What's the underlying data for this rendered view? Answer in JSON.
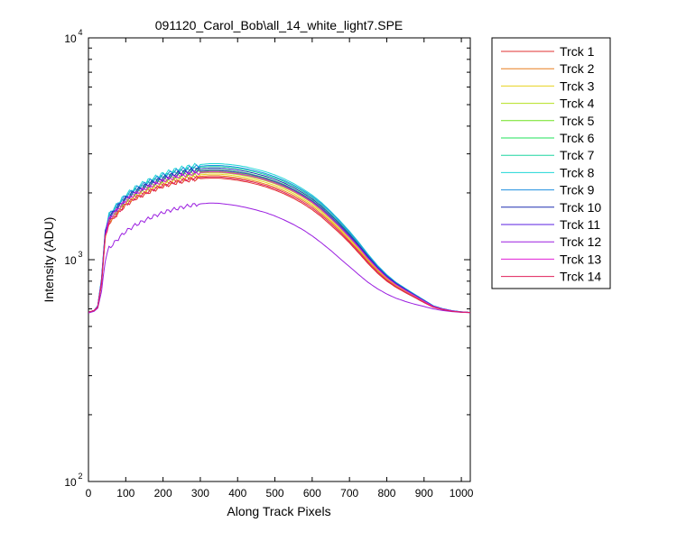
{
  "chart_data": {
    "type": "line",
    "title": "091120_Carol_Bob\\all_14_white_light7.SPE",
    "xlabel": "Along Track Pixels",
    "ylabel": "Intensity (ADU)",
    "xlim": [
      0,
      1024
    ],
    "ylim": [
      100,
      10000
    ],
    "yscale": "log",
    "grid": false,
    "legend_position": "outside-top-right",
    "x_ticks": [
      0,
      100,
      200,
      300,
      400,
      500,
      600,
      700,
      800,
      900,
      1000
    ],
    "y_ticks": [
      {
        "value": 100,
        "base": "10",
        "exp": "2"
      },
      {
        "value": 1000,
        "base": "10",
        "exp": "3"
      },
      {
        "value": 10000,
        "base": "10",
        "exp": "4"
      }
    ],
    "x": [
      0,
      15,
      25,
      35,
      45,
      55,
      65,
      75,
      85,
      100,
      125,
      150,
      175,
      200,
      225,
      250,
      275,
      300,
      325,
      350,
      375,
      400,
      425,
      450,
      475,
      500,
      525,
      550,
      575,
      600,
      625,
      650,
      675,
      700,
      725,
      750,
      775,
      800,
      825,
      850,
      875,
      900,
      925,
      950,
      975,
      1000,
      1024
    ],
    "series": [
      {
        "name": "Trck 1",
        "color": "#e03030",
        "values": [
          580,
          590,
          610,
          780,
          1250,
          1460,
          1520,
          1590,
          1660,
          1760,
          1880,
          1970,
          2060,
          2140,
          2200,
          2250,
          2290,
          2320,
          2330,
          2330,
          2310,
          2280,
          2240,
          2190,
          2130,
          2060,
          1980,
          1890,
          1790,
          1680,
          1560,
          1430,
          1310,
          1190,
          1070,
          960,
          870,
          800,
          750,
          710,
          675,
          640,
          610,
          595,
          585,
          580,
          578
        ]
      },
      {
        "name": "Trck 2",
        "color": "#e87f1f",
        "values": [
          580,
          590,
          612,
          785,
          1270,
          1480,
          1545,
          1615,
          1685,
          1790,
          1915,
          2010,
          2100,
          2185,
          2250,
          2300,
          2345,
          2375,
          2390,
          2390,
          2370,
          2340,
          2300,
          2250,
          2190,
          2120,
          2040,
          1950,
          1850,
          1740,
          1610,
          1480,
          1350,
          1220,
          1100,
          985,
          890,
          815,
          760,
          718,
          680,
          645,
          612,
          596,
          586,
          580,
          578
        ]
      },
      {
        "name": "Trck 3",
        "color": "#e8d21f",
        "values": [
          580,
          590,
          613,
          790,
          1280,
          1495,
          1560,
          1635,
          1705,
          1810,
          1940,
          2040,
          2130,
          2215,
          2285,
          2340,
          2385,
          2415,
          2430,
          2430,
          2410,
          2380,
          2340,
          2290,
          2230,
          2160,
          2080,
          1985,
          1880,
          1770,
          1640,
          1500,
          1370,
          1240,
          1115,
          995,
          900,
          822,
          765,
          722,
          683,
          647,
          613,
          597,
          586,
          580,
          578
        ]
      },
      {
        "name": "Trck 4",
        "color": "#b5e01f",
        "values": [
          580,
          590,
          614,
          795,
          1290,
          1510,
          1580,
          1655,
          1725,
          1835,
          1965,
          2070,
          2160,
          2250,
          2320,
          2375,
          2420,
          2455,
          2470,
          2470,
          2450,
          2420,
          2380,
          2330,
          2270,
          2200,
          2115,
          2020,
          1915,
          1800,
          1665,
          1525,
          1390,
          1255,
          1128,
          1005,
          907,
          828,
          770,
          726,
          686,
          649,
          614,
          597,
          587,
          581,
          578
        ]
      },
      {
        "name": "Trck 5",
        "color": "#6de01f",
        "values": [
          580,
          590,
          615,
          800,
          1300,
          1525,
          1595,
          1670,
          1745,
          1855,
          1990,
          2095,
          2190,
          2280,
          2350,
          2410,
          2455,
          2490,
          2505,
          2505,
          2485,
          2455,
          2415,
          2365,
          2305,
          2230,
          2145,
          2050,
          1940,
          1825,
          1690,
          1545,
          1405,
          1270,
          1140,
          1015,
          913,
          833,
          773,
          729,
          688,
          650,
          615,
          598,
          587,
          581,
          578
        ]
      },
      {
        "name": "Trck 6",
        "color": "#1fe05a",
        "values": [
          580,
          590,
          616,
          805,
          1310,
          1540,
          1610,
          1690,
          1765,
          1875,
          2015,
          2125,
          2220,
          2310,
          2385,
          2445,
          2490,
          2525,
          2545,
          2545,
          2525,
          2495,
          2455,
          2400,
          2340,
          2265,
          2180,
          2080,
          1970,
          1850,
          1715,
          1565,
          1425,
          1285,
          1152,
          1025,
          920,
          838,
          777,
          732,
          690,
          652,
          616,
          599,
          588,
          581,
          578
        ]
      },
      {
        "name": "Trck 7",
        "color": "#1fd6a0",
        "values": [
          580,
          590,
          618,
          815,
          1330,
          1570,
          1645,
          1725,
          1805,
          1920,
          2065,
          2180,
          2280,
          2375,
          2455,
          2520,
          2570,
          2610,
          2630,
          2630,
          2610,
          2580,
          2535,
          2480,
          2415,
          2340,
          2250,
          2145,
          2030,
          1905,
          1765,
          1610,
          1460,
          1315,
          1175,
          1042,
          932,
          847,
          784,
          737,
          694,
          655,
          618,
          600,
          588,
          581,
          578
        ]
      },
      {
        "name": "Trck 8",
        "color": "#1fd6d6",
        "values": [
          580,
          590,
          620,
          825,
          1350,
          1600,
          1680,
          1760,
          1845,
          1965,
          2115,
          2235,
          2340,
          2440,
          2525,
          2590,
          2645,
          2685,
          2710,
          2710,
          2690,
          2660,
          2615,
          2555,
          2490,
          2410,
          2315,
          2205,
          2085,
          1955,
          1810,
          1650,
          1495,
          1345,
          1198,
          1058,
          944,
          856,
          790,
          742,
          698,
          658,
          620,
          601,
          589,
          582,
          578
        ]
      },
      {
        "name": "Trck 9",
        "color": "#1f8fe0",
        "values": [
          580,
          590,
          619,
          820,
          1340,
          1585,
          1660,
          1740,
          1825,
          1940,
          2085,
          2200,
          2305,
          2400,
          2485,
          2550,
          2600,
          2640,
          2660,
          2660,
          2640,
          2610,
          2565,
          2510,
          2445,
          2365,
          2275,
          2170,
          2055,
          1930,
          1790,
          1635,
          1480,
          1330,
          1188,
          1050,
          938,
          852,
          788,
          740,
          697,
          657,
          619,
          601,
          589,
          582,
          578
        ]
      },
      {
        "name": "Trck 10",
        "color": "#1f2fb0",
        "values": [
          580,
          590,
          617,
          810,
          1320,
          1555,
          1628,
          1707,
          1785,
          1898,
          2040,
          2152,
          2250,
          2343,
          2420,
          2483,
          2530,
          2568,
          2588,
          2588,
          2568,
          2538,
          2495,
          2440,
          2378,
          2303,
          2215,
          2113,
          2000,
          1878,
          1740,
          1588,
          1443,
          1300,
          1163,
          1034,
          926,
          843,
          781,
          735,
          692,
          654,
          617,
          600,
          588,
          581,
          578
        ]
      },
      {
        "name": "Trck 11",
        "color": "#5a1fe0",
        "values": [
          580,
          590,
          616,
          805,
          1305,
          1535,
          1605,
          1683,
          1757,
          1868,
          2005,
          2112,
          2207,
          2297,
          2372,
          2432,
          2477,
          2512,
          2530,
          2530,
          2510,
          2480,
          2440,
          2385,
          2325,
          2250,
          2165,
          2065,
          1955,
          1838,
          1705,
          1557,
          1417,
          1278,
          1146,
          1020,
          917,
          836,
          775,
          731,
          689,
          651,
          616,
          599,
          588,
          581,
          578
        ]
      },
      {
        "name": "Trck 12",
        "color": "#9b1fe0",
        "values": [
          575,
          585,
          605,
          720,
          1000,
          1130,
          1170,
          1220,
          1270,
          1340,
          1430,
          1500,
          1570,
          1630,
          1680,
          1720,
          1760,
          1785,
          1800,
          1795,
          1775,
          1750,
          1715,
          1675,
          1630,
          1575,
          1510,
          1440,
          1365,
          1280,
          1190,
          1100,
          1010,
          930,
          855,
          790,
          740,
          700,
          670,
          648,
          630,
          615,
          600,
          590,
          583,
          579,
          577
        ]
      },
      {
        "name": "Trck 13",
        "color": "#e01fd6",
        "values": [
          580,
          590,
          614,
          798,
          1295,
          1518,
          1588,
          1663,
          1736,
          1846,
          1978,
          2083,
          2176,
          2265,
          2335,
          2392,
          2437,
          2472,
          2488,
          2488,
          2468,
          2438,
          2398,
          2348,
          2288,
          2215,
          2130,
          2035,
          1928,
          1813,
          1678,
          1535,
          1398,
          1262,
          1134,
          1010,
          910,
          830,
          771,
          727,
          687,
          650,
          615,
          598,
          587,
          581,
          578
        ]
      },
      {
        "name": "Trck 14",
        "color": "#e01f5a",
        "values": [
          580,
          590,
          611,
          783,
          1260,
          1470,
          1532,
          1602,
          1672,
          1775,
          1898,
          1990,
          2080,
          2162,
          2225,
          2275,
          2318,
          2348,
          2360,
          2360,
          2340,
          2310,
          2270,
          2220,
          2160,
          2090,
          2010,
          1920,
          1820,
          1710,
          1585,
          1455,
          1330,
          1205,
          1085,
          972,
          880,
          808,
          755,
          714,
          678,
          642,
          611,
          596,
          585,
          580,
          578
        ]
      }
    ]
  }
}
